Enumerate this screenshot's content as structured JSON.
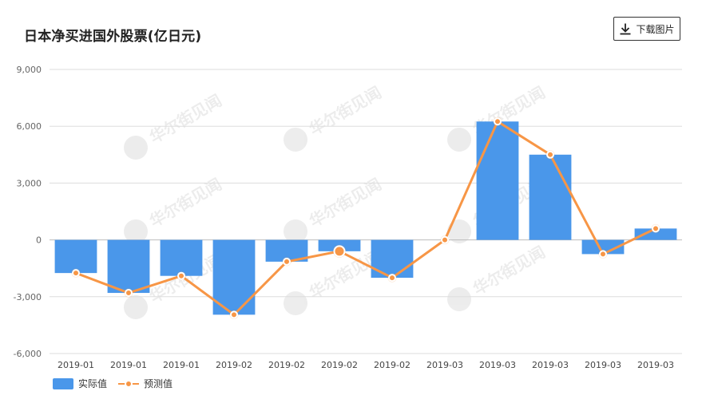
{
  "page": {
    "title": "日本净买进国外股票(亿日元)",
    "download_label": "下载图片",
    "download_icon": "download-icon",
    "watermark": "华尔街见闻"
  },
  "colors": {
    "bar": "#4a97ea",
    "line": "#f79646",
    "grid": "#dddddd",
    "axis_text": "#666666"
  },
  "chart_data": {
    "type": "bar",
    "title": "日本净买进国外股票(亿日元)",
    "categories": [
      "2019-01",
      "2019-01",
      "2019-01",
      "2019-02",
      "2019-02",
      "2019-02",
      "2019-02",
      "2019-03",
      "2019-03",
      "2019-03",
      "2019-03",
      "2019-03"
    ],
    "series": [
      {
        "name": "实际值",
        "type": "bar",
        "values": [
          -1750,
          -2800,
          -1900,
          -3950,
          -1150,
          -600,
          -2000,
          0,
          6250,
          4500,
          -750,
          600
        ]
      },
      {
        "name": "预测值",
        "type": "line",
        "values": [
          -1750,
          -2800,
          -1900,
          -3950,
          -1150,
          -600,
          -2000,
          0,
          6250,
          4500,
          -750,
          600
        ]
      }
    ],
    "ylim": [
      -6000,
      9000
    ],
    "yticks": [
      9000,
      6000,
      3000,
      0,
      -3000,
      -6000
    ],
    "ytick_labels": [
      "9,000",
      "6,000",
      "3,000",
      "0",
      "-3,000",
      "-6,000"
    ],
    "xlabel": "",
    "ylabel": "",
    "grid": true,
    "legend": "bottom-left",
    "highlighted_index": 5
  }
}
